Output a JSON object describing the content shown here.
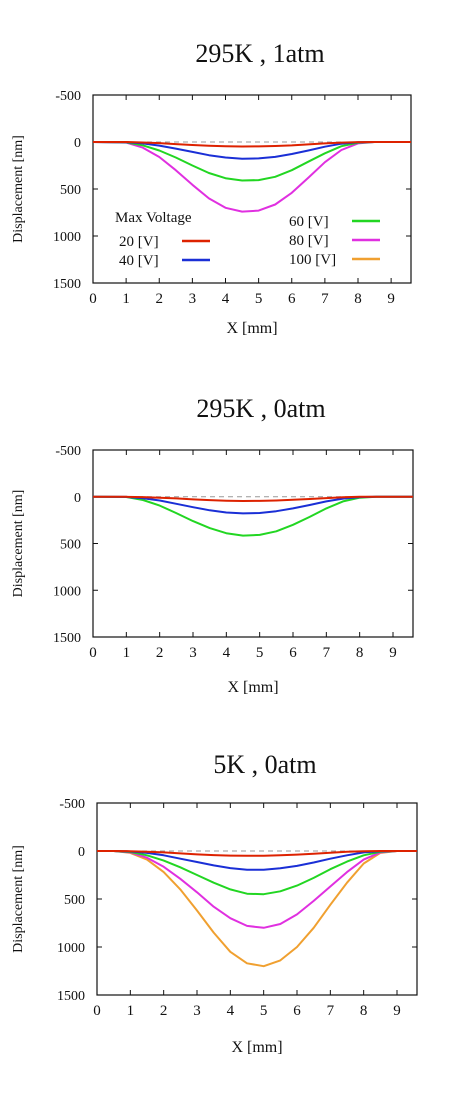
{
  "chart_data": [
    {
      "type": "line",
      "title": "295K , 1atm",
      "xlabel": "X [mm]",
      "ylabel": "Displacement [nm]",
      "xlim": [
        0,
        9.6
      ],
      "ylim": [
        1500,
        -500
      ],
      "xticks": [
        "0",
        "1",
        "2",
        "3",
        "4",
        "5",
        "6",
        "7",
        "8",
        "9"
      ],
      "yticks": [
        "-500",
        "0",
        "500",
        "1000",
        "1500"
      ],
      "reference_line": {
        "y": 0,
        "style": "dashed",
        "color": "#999999"
      },
      "legend": {
        "title": "Max Voltage",
        "placement": "inside-bottom",
        "entries": [
          {
            "label": "20 [V]",
            "color": "#dd2200"
          },
          {
            "label": "40 [V]",
            "color": "#1a2fd6"
          },
          {
            "label": "60 [V]",
            "color": "#22d622"
          },
          {
            "label": "80 [V]",
            "color": "#e030e0"
          },
          {
            "label": "100 [V]",
            "color": "#f0a030"
          }
        ]
      },
      "series": [
        {
          "name": "20 [V]",
          "color": "#dd2200",
          "x": [
            0,
            1,
            1.5,
            2,
            2.5,
            3,
            3.5,
            4,
            4.5,
            5,
            5.5,
            6,
            6.5,
            7,
            7.5,
            8,
            8.5,
            9,
            9.6
          ],
          "y": [
            0,
            0,
            5,
            12,
            22,
            32,
            40,
            46,
            48,
            47,
            43,
            36,
            26,
            15,
            6,
            1,
            0,
            0,
            0
          ]
        },
        {
          "name": "40 [V]",
          "color": "#1a2fd6",
          "x": [
            0,
            1,
            1.5,
            2,
            2.5,
            3,
            3.5,
            4,
            4.5,
            5,
            5.5,
            6,
            6.5,
            7,
            7.5,
            8,
            8.5,
            9,
            9.6
          ],
          "y": [
            0,
            2,
            15,
            38,
            70,
            105,
            140,
            165,
            178,
            175,
            158,
            128,
            90,
            50,
            18,
            3,
            0,
            0,
            0
          ]
        },
        {
          "name": "60 [V]",
          "color": "#22d622",
          "x": [
            0,
            1,
            1.5,
            2,
            2.5,
            3,
            3.5,
            4,
            4.5,
            5,
            5.5,
            6,
            6.5,
            7,
            7.5,
            8,
            8.5,
            9,
            9.6
          ],
          "y": [
            0,
            4,
            35,
            90,
            165,
            250,
            330,
            385,
            410,
            405,
            370,
            300,
            210,
            120,
            45,
            8,
            0,
            0,
            0
          ]
        },
        {
          "name": "80 [V]",
          "color": "#e030e0",
          "x": [
            0,
            1,
            1.5,
            2,
            2.5,
            3,
            3.5,
            4,
            4.5,
            5,
            5.5,
            6,
            6.5,
            7,
            7.5,
            8,
            8.5,
            9,
            9.6
          ],
          "y": [
            0,
            6,
            60,
            160,
            300,
            455,
            600,
            700,
            740,
            730,
            665,
            540,
            380,
            215,
            85,
            15,
            0,
            0,
            0
          ]
        }
      ]
    },
    {
      "type": "line",
      "title": "295K , 0atm",
      "xlabel": "X [mm]",
      "ylabel": "Displacement [nm]",
      "xlim": [
        0,
        9.6
      ],
      "ylim": [
        1500,
        -500
      ],
      "xticks": [
        "0",
        "1",
        "2",
        "3",
        "4",
        "5",
        "6",
        "7",
        "8",
        "9"
      ],
      "yticks": [
        "-500",
        "0",
        "500",
        "1000",
        "1500"
      ],
      "reference_line": {
        "y": 0,
        "style": "dashed",
        "color": "#999999"
      },
      "series": [
        {
          "name": "20 [V]",
          "color": "#dd2200",
          "x": [
            0,
            1,
            1.5,
            2,
            2.5,
            3,
            3.5,
            4,
            4.5,
            5,
            5.5,
            6,
            6.5,
            7,
            7.5,
            8,
            8.5,
            9,
            9.6
          ],
          "y": [
            0,
            0,
            4,
            10,
            18,
            28,
            36,
            42,
            45,
            44,
            40,
            33,
            24,
            14,
            6,
            1,
            0,
            0,
            0
          ]
        },
        {
          "name": "40 [V]",
          "color": "#1a2fd6",
          "x": [
            0,
            1,
            1.5,
            2,
            2.5,
            3,
            3.5,
            4,
            4.5,
            5,
            5.5,
            6,
            6.5,
            7,
            7.5,
            8,
            8.5,
            9,
            9.6
          ],
          "y": [
            0,
            2,
            15,
            40,
            75,
            112,
            145,
            168,
            178,
            174,
            155,
            125,
            88,
            50,
            20,
            4,
            0,
            0,
            0
          ]
        },
        {
          "name": "60 [V]",
          "color": "#22d622",
          "x": [
            0,
            1,
            1.5,
            2,
            2.5,
            3,
            3.5,
            4,
            4.5,
            5,
            5.5,
            6,
            6.5,
            7,
            7.5,
            8,
            8.5,
            9,
            9.6
          ],
          "y": [
            0,
            3,
            35,
            95,
            175,
            260,
            335,
            390,
            415,
            408,
            370,
            300,
            215,
            125,
            50,
            10,
            0,
            0,
            0
          ]
        }
      ]
    },
    {
      "type": "line",
      "title": "5K , 0atm",
      "xlabel": "X [mm]",
      "ylabel": "Displacement [nm]",
      "xlim": [
        0,
        9.6
      ],
      "ylim": [
        1500,
        -500
      ],
      "xticks": [
        "0",
        "1",
        "2",
        "3",
        "4",
        "5",
        "6",
        "7",
        "8",
        "9"
      ],
      "yticks": [
        "-500",
        "0",
        "500",
        "1000",
        "1500"
      ],
      "reference_line": {
        "y": 0,
        "style": "dashed",
        "color": "#999999"
      },
      "series": [
        {
          "name": "20 [V]",
          "color": "#dd2200",
          "x": [
            0,
            0.5,
            1,
            1.5,
            2,
            2.5,
            3,
            3.5,
            4,
            4.5,
            5,
            5.5,
            6,
            6.5,
            7,
            7.5,
            8,
            8.5,
            9,
            9.6
          ],
          "y": [
            0,
            0,
            2,
            8,
            15,
            25,
            35,
            43,
            48,
            50,
            49,
            45,
            38,
            28,
            18,
            8,
            2,
            0,
            0,
            0
          ]
        },
        {
          "name": "40 [V]",
          "color": "#1a2fd6",
          "x": [
            0,
            0.5,
            1,
            1.5,
            2,
            2.5,
            3,
            3.5,
            4,
            4.5,
            5,
            5.5,
            6,
            6.5,
            7,
            7.5,
            8,
            8.5,
            9,
            9.6
          ],
          "y": [
            0,
            0,
            5,
            20,
            45,
            80,
            115,
            150,
            178,
            195,
            195,
            180,
            155,
            120,
            80,
            45,
            15,
            2,
            0,
            0
          ]
        },
        {
          "name": "60 [V]",
          "color": "#22d622",
          "x": [
            0,
            0.5,
            1,
            1.5,
            2,
            2.5,
            3,
            3.5,
            4,
            4.5,
            5,
            5.5,
            6,
            6.5,
            7,
            7.5,
            8,
            8.5,
            9,
            9.6
          ],
          "y": [
            0,
            0,
            10,
            45,
            100,
            170,
            250,
            330,
            400,
            445,
            450,
            420,
            360,
            280,
            190,
            110,
            45,
            8,
            0,
            0
          ]
        },
        {
          "name": "80 [V]",
          "color": "#e030e0",
          "x": [
            0,
            0.5,
            1,
            1.5,
            2,
            2.5,
            3,
            3.5,
            4,
            4.5,
            5,
            5.5,
            6,
            6.5,
            7,
            7.5,
            8,
            8.5,
            9,
            9.6
          ],
          "y": [
            0,
            0,
            15,
            70,
            165,
            290,
            430,
            580,
            700,
            780,
            800,
            760,
            660,
            520,
            370,
            220,
            90,
            15,
            0,
            0
          ]
        },
        {
          "name": "100 [V]",
          "color": "#f0a030",
          "x": [
            0,
            0.5,
            1,
            1.5,
            2,
            2.5,
            3,
            3.5,
            4,
            4.5,
            5,
            5.5,
            6,
            6.5,
            7,
            7.5,
            8,
            8.5,
            9,
            9.6
          ],
          "y": [
            0,
            0,
            20,
            90,
            220,
            400,
            620,
            850,
            1050,
            1170,
            1200,
            1140,
            1000,
            800,
            560,
            330,
            130,
            20,
            0,
            0
          ]
        }
      ]
    }
  ]
}
